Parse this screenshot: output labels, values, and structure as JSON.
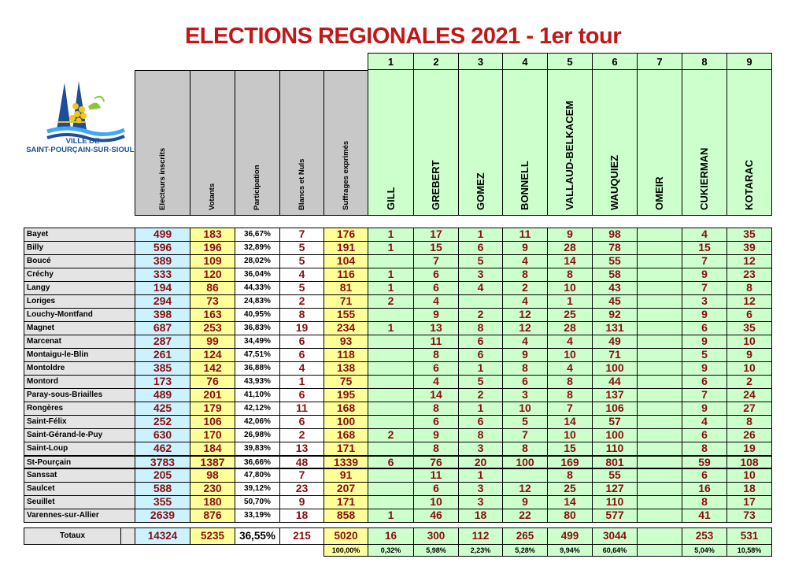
{
  "title": "ELECTIONS REGIONALES 2021 - 1er tour",
  "logo": {
    "line1": "VILLE DE",
    "line2": "SAINT-POURÇAIN-SUR-SIOULE"
  },
  "stat_headers": [
    "Electeurs inscrits",
    "Votants",
    "Participation",
    "Blancs et Nuls",
    "Suffrages exprimés"
  ],
  "candidates": [
    {
      "num": "1",
      "name": "GILL"
    },
    {
      "num": "2",
      "name": "GREBERT"
    },
    {
      "num": "3",
      "name": "GOMEZ"
    },
    {
      "num": "4",
      "name": "BONNELL"
    },
    {
      "num": "5",
      "name": "VALLAUD-BELKACEM"
    },
    {
      "num": "6",
      "name": "WAUQUIEZ"
    },
    {
      "num": "7",
      "name": "OMEIR"
    },
    {
      "num": "8",
      "name": "CUKIERMAN"
    },
    {
      "num": "9",
      "name": "KOTARAC"
    }
  ],
  "rows": [
    [
      "Bayet",
      "499",
      "183",
      "36,67%",
      "7",
      "176",
      "1",
      "17",
      "1",
      "11",
      "9",
      "98",
      "",
      "4",
      "35"
    ],
    [
      "Billy",
      "596",
      "196",
      "32,89%",
      "5",
      "191",
      "1",
      "15",
      "6",
      "9",
      "28",
      "78",
      "",
      "15",
      "39"
    ],
    [
      "Boucé",
      "389",
      "109",
      "28,02%",
      "5",
      "104",
      "",
      "7",
      "5",
      "4",
      "14",
      "55",
      "",
      "7",
      "12"
    ],
    [
      "Créchy",
      "333",
      "120",
      "36,04%",
      "4",
      "116",
      "1",
      "6",
      "3",
      "8",
      "8",
      "58",
      "",
      "9",
      "23"
    ],
    [
      "Langy",
      "194",
      "86",
      "44,33%",
      "5",
      "81",
      "1",
      "6",
      "4",
      "2",
      "10",
      "43",
      "",
      "7",
      "8"
    ],
    [
      "Loriges",
      "294",
      "73",
      "24,83%",
      "2",
      "71",
      "2",
      "4",
      "",
      "4",
      "1",
      "45",
      "",
      "3",
      "12"
    ],
    [
      "Louchy-Montfand",
      "398",
      "163",
      "40,95%",
      "8",
      "155",
      "",
      "9",
      "2",
      "12",
      "25",
      "92",
      "",
      "9",
      "6"
    ],
    [
      "Magnet",
      "687",
      "253",
      "36,83%",
      "19",
      "234",
      "1",
      "13",
      "8",
      "12",
      "28",
      "131",
      "",
      "6",
      "35"
    ],
    [
      "Marcenat",
      "287",
      "99",
      "34,49%",
      "6",
      "93",
      "",
      "11",
      "6",
      "4",
      "4",
      "49",
      "",
      "9",
      "10"
    ],
    [
      "Montaigu-le-Blin",
      "261",
      "124",
      "47,51%",
      "6",
      "118",
      "",
      "8",
      "6",
      "9",
      "10",
      "71",
      "",
      "5",
      "9"
    ],
    [
      "Montoldre",
      "385",
      "142",
      "36,88%",
      "4",
      "138",
      "",
      "6",
      "1",
      "8",
      "4",
      "100",
      "",
      "9",
      "10"
    ],
    [
      "Montord",
      "173",
      "76",
      "43,93%",
      "1",
      "75",
      "",
      "4",
      "5",
      "6",
      "8",
      "44",
      "",
      "6",
      "2"
    ],
    [
      "Paray-sous-Briailles",
      "489",
      "201",
      "41,10%",
      "6",
      "195",
      "",
      "14",
      "2",
      "3",
      "8",
      "137",
      "",
      "7",
      "24"
    ],
    [
      "Rongères",
      "425",
      "179",
      "42,12%",
      "11",
      "168",
      "",
      "8",
      "1",
      "10",
      "7",
      "106",
      "",
      "9",
      "27"
    ],
    [
      "Saint-Félix",
      "252",
      "106",
      "42,06%",
      "6",
      "100",
      "",
      "6",
      "6",
      "5",
      "14",
      "57",
      "",
      "4",
      "8"
    ],
    [
      "Saint-Gérand-le-Puy",
      "630",
      "170",
      "26,98%",
      "2",
      "168",
      "2",
      "9",
      "8",
      "7",
      "10",
      "100",
      "",
      "6",
      "26"
    ],
    [
      "Saint-Loup",
      "462",
      "184",
      "39,83%",
      "13",
      "171",
      "",
      "8",
      "3",
      "8",
      "15",
      "110",
      "",
      "8",
      "19"
    ],
    [
      "St-Pourçain",
      "3783",
      "1387",
      "36,66%",
      "48",
      "1339",
      "6",
      "76",
      "20",
      "100",
      "169",
      "801",
      "",
      "59",
      "108"
    ],
    [
      "Sanssat",
      "205",
      "98",
      "47,80%",
      "7",
      "91",
      "",
      "11",
      "1",
      "",
      "8",
      "55",
      "",
      "6",
      "10"
    ],
    [
      "Saulcet",
      "588",
      "230",
      "39,12%",
      "23",
      "207",
      "",
      "6",
      "3",
      "12",
      "25",
      "127",
      "",
      "16",
      "18"
    ],
    [
      "Seuillet",
      "355",
      "180",
      "50,70%",
      "9",
      "171",
      "",
      "10",
      "3",
      "9",
      "14",
      "110",
      "",
      "8",
      "17"
    ],
    [
      "Varennes-sur-Allier",
      "2639",
      "876",
      "33,19%",
      "18",
      "858",
      "1",
      "46",
      "18",
      "22",
      "80",
      "577",
      "",
      "41",
      "73"
    ]
  ],
  "totals": {
    "label": "Totaux",
    "values": [
      "14324",
      "5235",
      "36,55%",
      "215",
      "5020",
      "16",
      "300",
      "112",
      "265",
      "499",
      "3044",
      "",
      "253",
      "531"
    ]
  },
  "percentages": [
    "100,00%",
    "0,32%",
    "5,98%",
    "2,23%",
    "5,28%",
    "9,94%",
    "60,64%",
    "",
    "5,04%",
    "10,58%"
  ],
  "colors": {
    "title": "#c01818",
    "values": "#8b0e0e",
    "inscrits_bg": "#ccf2ff",
    "votants_bg": "#ffff99",
    "candidates_bg": "#ccffcc",
    "header_grey": "#c8c8c8",
    "logo_blue": "#1e4d9a"
  }
}
